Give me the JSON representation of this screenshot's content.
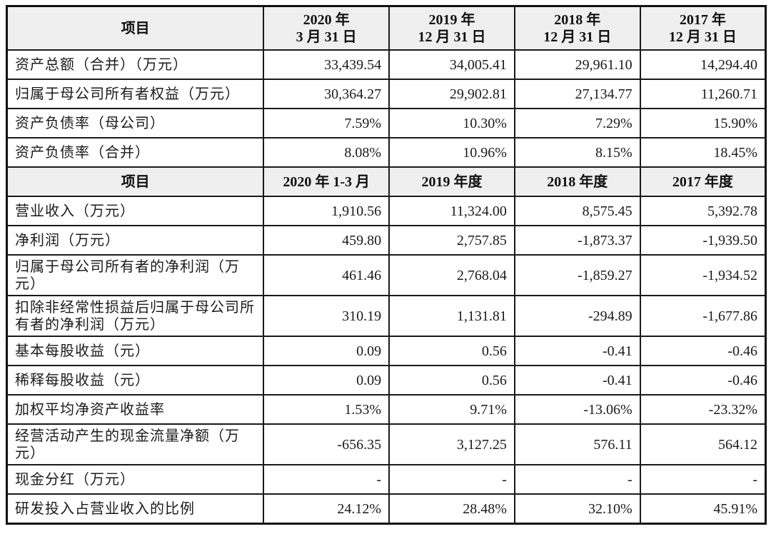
{
  "balance_header": {
    "item": "项目",
    "cols": [
      "2020 年\n3 月 31 日",
      "2019 年\n12 月 31 日",
      "2018 年\n12 月 31 日",
      "2017 年\n12 月 31 日"
    ],
    "cols_line1": [
      "2020 年",
      "2019 年",
      "2018 年",
      "2017 年"
    ],
    "cols_line2": [
      "3 月 31 日",
      "12 月 31 日",
      "12 月 31 日",
      "12 月 31 日"
    ]
  },
  "balance_rows": [
    {
      "label": "资产总额（合并）（万元）",
      "values": [
        "33,439.54",
        "34,005.41",
        "29,961.10",
        "14,294.40"
      ]
    },
    {
      "label": "归属于母公司所有者权益（万元）",
      "values": [
        "30,364.27",
        "29,902.81",
        "27,134.77",
        "11,260.71"
      ]
    },
    {
      "label": "资产负债率（母公司）",
      "values": [
        "7.59%",
        "10.30%",
        "7.29%",
        "15.90%"
      ]
    },
    {
      "label": "资产负债率（合并）",
      "values": [
        "8.08%",
        "10.96%",
        "8.15%",
        "18.45%"
      ]
    }
  ],
  "income_header": {
    "item": "项目",
    "cols": [
      "2020 年 1-3 月",
      "2019 年度",
      "2018 年度",
      "2017 年度"
    ]
  },
  "income_rows": [
    {
      "label": "营业收入（万元）",
      "values": [
        "1,910.56",
        "11,324.00",
        "8,575.45",
        "5,392.78"
      ]
    },
    {
      "label": "净利润（万元）",
      "values": [
        "459.80",
        "2,757.85",
        "-1,873.37",
        "-1,939.50"
      ]
    },
    {
      "label": "归属于母公司所有者的净利润（万元）",
      "values": [
        "461.46",
        "2,768.04",
        "-1,859.27",
        "-1,934.52"
      ]
    },
    {
      "label": "扣除非经常性损益后归属于母公司所有者的净利润（万元）",
      "values": [
        "310.19",
        "1,131.81",
        "-294.89",
        "-1,677.86"
      ]
    },
    {
      "label": "基本每股收益（元）",
      "values": [
        "0.09",
        "0.56",
        "-0.41",
        "-0.46"
      ]
    },
    {
      "label": "稀释每股收益（元）",
      "values": [
        "0.09",
        "0.56",
        "-0.41",
        "-0.46"
      ]
    },
    {
      "label": "加权平均净资产收益率",
      "values": [
        "1.53%",
        "9.71%",
        "-13.06%",
        "-23.32%"
      ]
    },
    {
      "label": "经营活动产生的现金流量净额（万元）",
      "values": [
        "-656.35",
        "3,127.25",
        "576.11",
        "564.12"
      ]
    },
    {
      "label": "现金分红（万元）",
      "values": [
        "-",
        "-",
        "-",
        "-"
      ]
    },
    {
      "label": "研发投入占营业收入的比例",
      "values": [
        "24.12%",
        "28.48%",
        "32.10%",
        "45.91%"
      ]
    }
  ]
}
